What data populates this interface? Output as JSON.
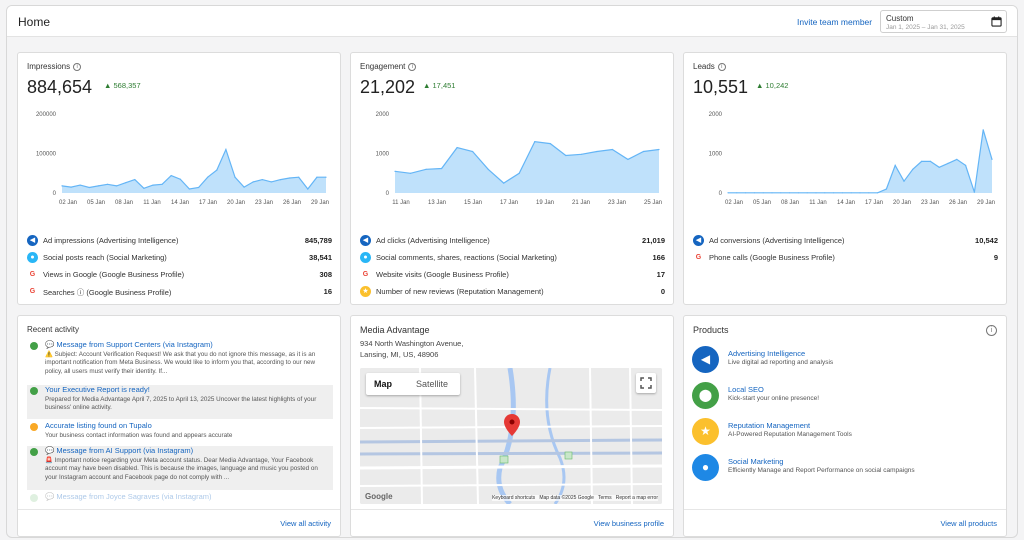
{
  "header": {
    "title": "Home",
    "invite": "Invite team member",
    "date_label": "Custom",
    "date_range": "Jan 1, 2025 – Jan 31, 2025"
  },
  "impressions": {
    "title": "Impressions",
    "value": "884,654",
    "delta": "568,357",
    "y_ticks": [
      "200000",
      "100000",
      "0"
    ],
    "x_ticks": [
      "02 Jan",
      "05 Jan",
      "08 Jan",
      "11 Jan",
      "14 Jan",
      "17 Jan",
      "20 Jan",
      "23 Jan",
      "26 Jan",
      "29 Jan"
    ],
    "rows": [
      {
        "label": "Ad impressions (Advertising Intelligence)",
        "value": "845,789",
        "icon": "megaphone-icon"
      },
      {
        "label": "Social posts reach (Social Marketing)",
        "value": "38,541",
        "icon": "chat-icon"
      },
      {
        "label": "Views in Google (Google Business Profile)",
        "value": "308",
        "icon": "google-icon"
      },
      {
        "label": "Searches ⓘ (Google Business Profile)",
        "value": "16",
        "icon": "google-icon"
      }
    ]
  },
  "engagement": {
    "title": "Engagement",
    "value": "21,202",
    "delta": "17,451",
    "y_ticks": [
      "2000",
      "1000",
      "0"
    ],
    "x_ticks": [
      "11 Jan",
      "13 Jan",
      "15 Jan",
      "17 Jan",
      "19 Jan",
      "21 Jan",
      "23 Jan",
      "25 Jan"
    ],
    "rows": [
      {
        "label": "Ad clicks (Advertising Intelligence)",
        "value": "21,019",
        "icon": "megaphone-icon"
      },
      {
        "label": "Social comments, shares, reactions (Social Marketing)",
        "value": "166",
        "icon": "chat-icon"
      },
      {
        "label": "Website visits (Google Business Profile)",
        "value": "17",
        "icon": "google-icon"
      },
      {
        "label": "Number of new reviews (Reputation Management)",
        "value": "0",
        "icon": "star-icon"
      }
    ]
  },
  "leads": {
    "title": "Leads",
    "value": "10,551",
    "delta": "10,242",
    "y_ticks": [
      "2000",
      "1000",
      "0"
    ],
    "x_ticks": [
      "02 Jan",
      "05 Jan",
      "08 Jan",
      "11 Jan",
      "14 Jan",
      "17 Jan",
      "20 Jan",
      "23 Jan",
      "26 Jan",
      "29 Jan"
    ],
    "rows": [
      {
        "label": "Ad conversions (Advertising Intelligence)",
        "value": "10,542",
        "icon": "megaphone-icon"
      },
      {
        "label": "Phone calls (Google Business Profile)",
        "value": "9",
        "icon": "google-icon"
      }
    ]
  },
  "chart_data": [
    {
      "type": "area",
      "title": "Impressions",
      "ylim": [
        0,
        200000
      ],
      "values": [
        18000,
        15000,
        20000,
        14000,
        18000,
        22000,
        18000,
        26000,
        34000,
        12000,
        20000,
        22000,
        44000,
        35000,
        10000,
        14000,
        40000,
        58000,
        110000,
        40000,
        15000,
        28000,
        34000,
        28000,
        34000,
        38000,
        40000,
        10000,
        40000,
        40000
      ]
    },
    {
      "type": "area",
      "title": "Engagement",
      "ylim": [
        0,
        2000
      ],
      "values": [
        550,
        500,
        600,
        620,
        1150,
        1050,
        600,
        250,
        500,
        1300,
        1250,
        950,
        980,
        1050,
        1100,
        850,
        1050,
        1100
      ]
    },
    {
      "type": "area",
      "title": "Leads",
      "ylim": [
        0,
        2000
      ],
      "values": [
        5,
        5,
        5,
        5,
        5,
        5,
        5,
        5,
        5,
        5,
        5,
        5,
        5,
        5,
        5,
        5,
        5,
        5,
        100,
        700,
        300,
        600,
        800,
        800,
        650,
        750,
        850,
        700,
        20,
        1600,
        850
      ]
    }
  ],
  "activity": {
    "title": "Recent activity",
    "footer": "View all activity",
    "items": [
      {
        "title": "💬 Message from Support Centers (via Instagram)",
        "body": "⚠️ Subject: Account Verification Request! We ask that you do not ignore this message, as it is an important notification from Meta Business. We would like to inform you that, according to our new policy, all users must verify their identity. If...",
        "color": "#43a047",
        "shade": false
      },
      {
        "title": "Your Executive Report is ready!",
        "body": "Prepared for Media Advantage April 7, 2025 to April 13, 2025 Uncover the latest highlights of your business' online activity.",
        "color": "#43a047",
        "shade": true
      },
      {
        "title": "Accurate listing found on Tupalo",
        "body": "Your business contact information was found and appears accurate",
        "color": "#f9a825",
        "shade": false
      },
      {
        "title": "💬 Message from AI Support (via Instagram)",
        "body": "🚨 Important notice regarding your Meta account status. Dear Media Advantage, Your Facebook account may have been disabled. This is because the images, language and music you posted on your Instagram account and Facebook page do not comply with ...",
        "color": "#43a047",
        "shade": true
      },
      {
        "title": "💬 Message from Joyce Sagraves (via Instagram)",
        "body": "",
        "color": "#a5d6a7",
        "shade": false
      }
    ]
  },
  "media": {
    "title": "Media Advantage",
    "address1": "934 North Washington Avenue,",
    "address2": "Lansing, MI, US, 48906",
    "map_tab": "Map",
    "satellite_tab": "Satellite",
    "attribution": "Keyboard shortcuts   Map data ©2025 Google   Terms   Report a map error",
    "google": "Google",
    "footer": "View business profile"
  },
  "products": {
    "title": "Products",
    "footer": "View all products",
    "items": [
      {
        "name": "Advertising Intelligence",
        "desc": "Live digital ad reporting and analysis",
        "color": "#1565c0",
        "icon": "megaphone-icon"
      },
      {
        "name": "Local SEO",
        "desc": "Kick-start your online presence!",
        "color": "#43a047",
        "icon": "location-pin-icon"
      },
      {
        "name": "Reputation Management",
        "desc": "AI-Powered Reputation Management Tools",
        "color": "#fbc02d",
        "icon": "star-icon"
      },
      {
        "name": "Social Marketing",
        "desc": "Efficiently Manage and Report Performance on social campaigns",
        "color": "#1e88e5",
        "icon": "chat-icon"
      }
    ]
  },
  "colors": {
    "accent": "#1565c0",
    "positive": "#2e7d32",
    "chart_fill": "#bfe1fb",
    "chart_line": "#64b5f6"
  }
}
